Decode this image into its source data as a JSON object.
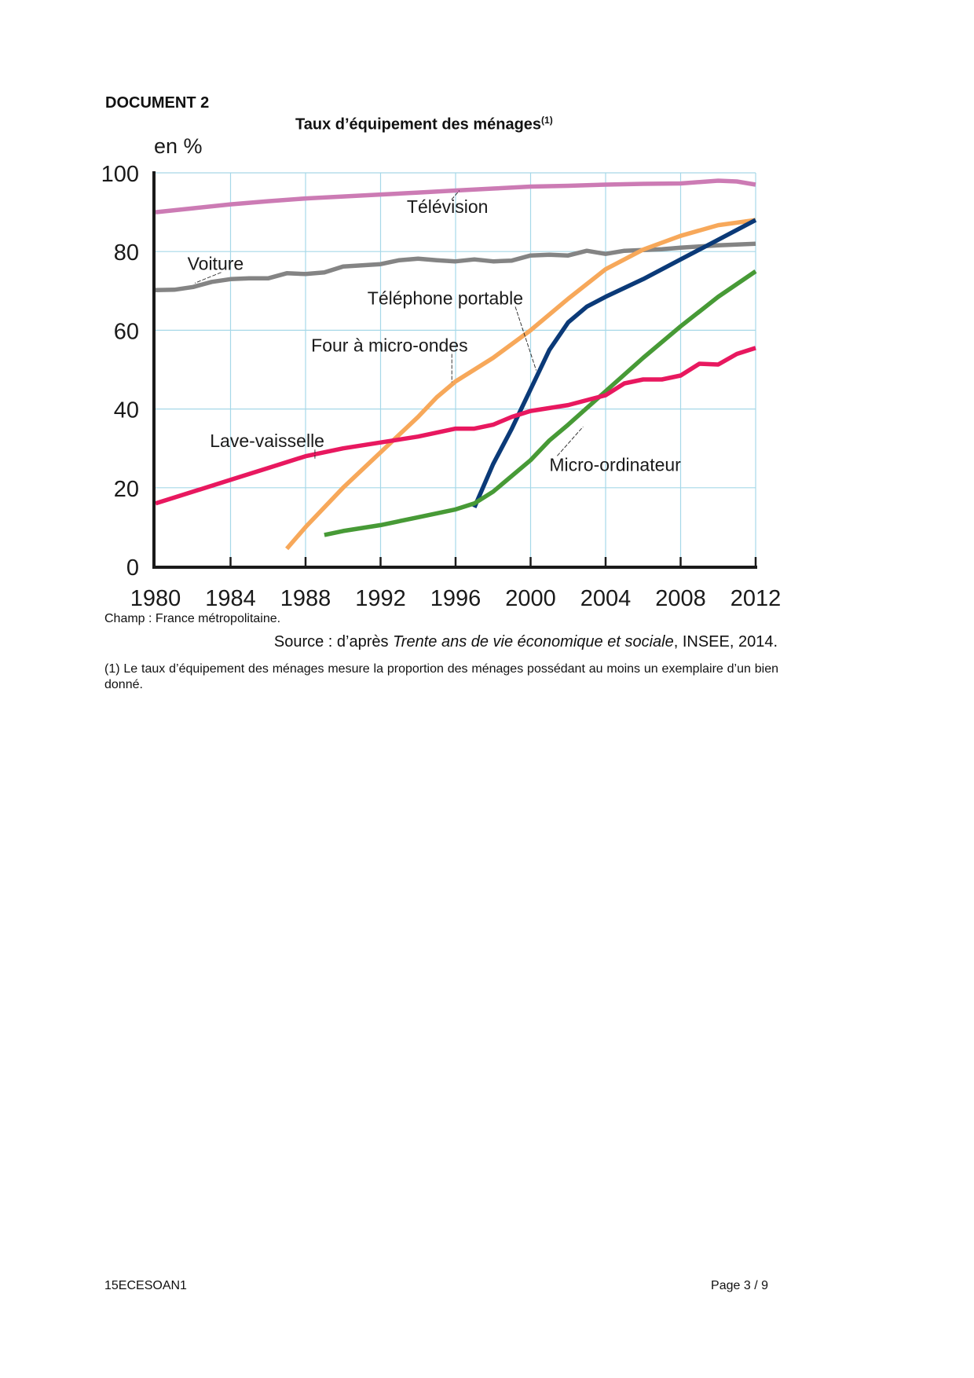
{
  "document": {
    "label": "DOCUMENT 2",
    "title": "Taux d’équipement des ménages",
    "title_note": "(1)",
    "champ": "Champ : France métropolitaine.",
    "source_prefix": "Source : d’après ",
    "source_title": "Trente ans de vie économique et sociale",
    "source_suffix": ", INSEE, 2014.",
    "footnote": "(1) Le taux d’équipement des ménages mesure la proportion des ménages possédant au moins un exemplaire d’un bien donné.",
    "footer_code": "15ECESOAN1",
    "footer_page": "Page 3 / 9"
  },
  "chart_data": {
    "type": "line",
    "title": "Taux d’équipement des ménages",
    "xlabel": "",
    "ylabel": "en %",
    "xlim": [
      1980,
      2012
    ],
    "ylim": [
      0,
      100
    ],
    "x_ticks": [
      1980,
      1984,
      1988,
      1992,
      1996,
      2000,
      2004,
      2008,
      2012
    ],
    "y_ticks": [
      0,
      20,
      40,
      60,
      80,
      100
    ],
    "grid": true,
    "legend": "inline-labels",
    "series": [
      {
        "name": "Télévision",
        "color": "#cc7bb4",
        "x": [
          1980,
          1982,
          1984,
          1986,
          1988,
          1990,
          1992,
          1994,
          1996,
          1998,
          2000,
          2002,
          2004,
          2006,
          2008,
          2010,
          2011,
          2012
        ],
        "values": [
          90,
          91,
          92,
          92.8,
          93.5,
          94,
          94.5,
          95,
          95.5,
          96,
          96.5,
          96.7,
          97,
          97.2,
          97.3,
          98,
          97.8,
          97
        ]
      },
      {
        "name": "Voiture",
        "color": "#848484",
        "x": [
          1980,
          1981,
          1982,
          1983,
          1984,
          1985,
          1986,
          1987,
          1988,
          1989,
          1990,
          1991,
          1992,
          1993,
          1994,
          1995,
          1996,
          1997,
          1998,
          1999,
          2000,
          2001,
          2002,
          2003,
          2004,
          2005,
          2006,
          2007,
          2008,
          2009,
          2010,
          2011,
          2012
        ],
        "values": [
          70.2,
          70.3,
          71,
          72.3,
          73,
          73.2,
          73.2,
          74.5,
          74.3,
          74.7,
          76.2,
          76.5,
          76.8,
          77.8,
          78.2,
          77.8,
          77.5,
          78,
          77.5,
          77.7,
          79,
          79.2,
          79,
          80.2,
          79.4,
          80.2,
          80.4,
          80.6,
          81,
          81.3,
          81.6,
          81.8,
          82
        ]
      },
      {
        "name": "Four à micro-ondes",
        "color": "#f7a85a",
        "x": [
          1987,
          1988,
          1990,
          1992,
          1994,
          1995,
          1996,
          1998,
          2000,
          2002,
          2004,
          2006,
          2008,
          2010,
          2012
        ],
        "values": [
          4.5,
          10,
          20,
          29,
          38,
          43,
          47,
          53,
          60,
          68,
          75.5,
          80.5,
          84,
          86.7,
          88
        ]
      },
      {
        "name": "Téléphone portable",
        "color": "#0b3a78",
        "x": [
          1997,
          1998,
          1999,
          2000,
          2001,
          2002,
          2003,
          2004,
          2006,
          2008,
          2010,
          2012
        ],
        "values": [
          15,
          26,
          35,
          45,
          55,
          62,
          66,
          68.5,
          73,
          78,
          83,
          88
        ]
      },
      {
        "name": "Micro-ordinateur",
        "color": "#479a36",
        "x": [
          1989,
          1990,
          1992,
          1994,
          1996,
          1997,
          1998,
          2000,
          2001,
          2002,
          2004,
          2006,
          2008,
          2010,
          2012
        ],
        "values": [
          8,
          9,
          10.5,
          12.5,
          14.5,
          16,
          19,
          27,
          32,
          36,
          44.5,
          53,
          61,
          68.5,
          75
        ]
      },
      {
        "name": "Lave-vaisselle",
        "color": "#e8185f",
        "x": [
          1980,
          1982,
          1984,
          1986,
          1988,
          1990,
          1992,
          1994,
          1996,
          1997,
          1998,
          1999,
          2000,
          2002,
          2004,
          2005,
          2006,
          2007,
          2008,
          2009,
          2010,
          2011,
          2012
        ],
        "values": [
          16,
          19,
          22,
          25,
          28,
          30,
          31.5,
          33,
          35,
          35,
          36,
          38,
          39.5,
          41,
          43.5,
          46.5,
          47.5,
          47.5,
          48.5,
          51.5,
          51.3,
          54,
          55.5
        ]
      }
    ],
    "annotations": [
      {
        "text": "Télévision",
        "series": "Télévision",
        "label_at": [
          1993.4,
          89.8
        ],
        "points_to": [
          1996.2,
          95.5
        ]
      },
      {
        "text": "Voiture",
        "series": "Voiture",
        "label_at": [
          1981.7,
          75.3
        ],
        "points_to": [
          1982.1,
          72
        ]
      },
      {
        "text": "Téléphone portable",
        "series": "Téléphone portable",
        "label_at": [
          1991.3,
          66.6
        ],
        "points_to": [
          2000.3,
          49.8
        ]
      },
      {
        "text": "Four à micro-ondes",
        "series": "Four à micro-ondes",
        "label_at": [
          1988.3,
          54.6
        ],
        "points_to": [
          1995.8,
          46.8
        ]
      },
      {
        "text": "Lave-vaisselle",
        "series": "Lave-vaisselle",
        "label_at": [
          1982.9,
          30.3
        ],
        "points_to": [
          1988.5,
          27.4
        ]
      },
      {
        "text": "Micro-ordinateur",
        "series": "Micro-ordinateur",
        "label_at": [
          2001,
          24.3
        ],
        "points_to": [
          2002.8,
          35.5
        ]
      }
    ],
    "axis_colors": {
      "grid": "#a6d8e8",
      "axis": "#1a1a1a"
    }
  }
}
